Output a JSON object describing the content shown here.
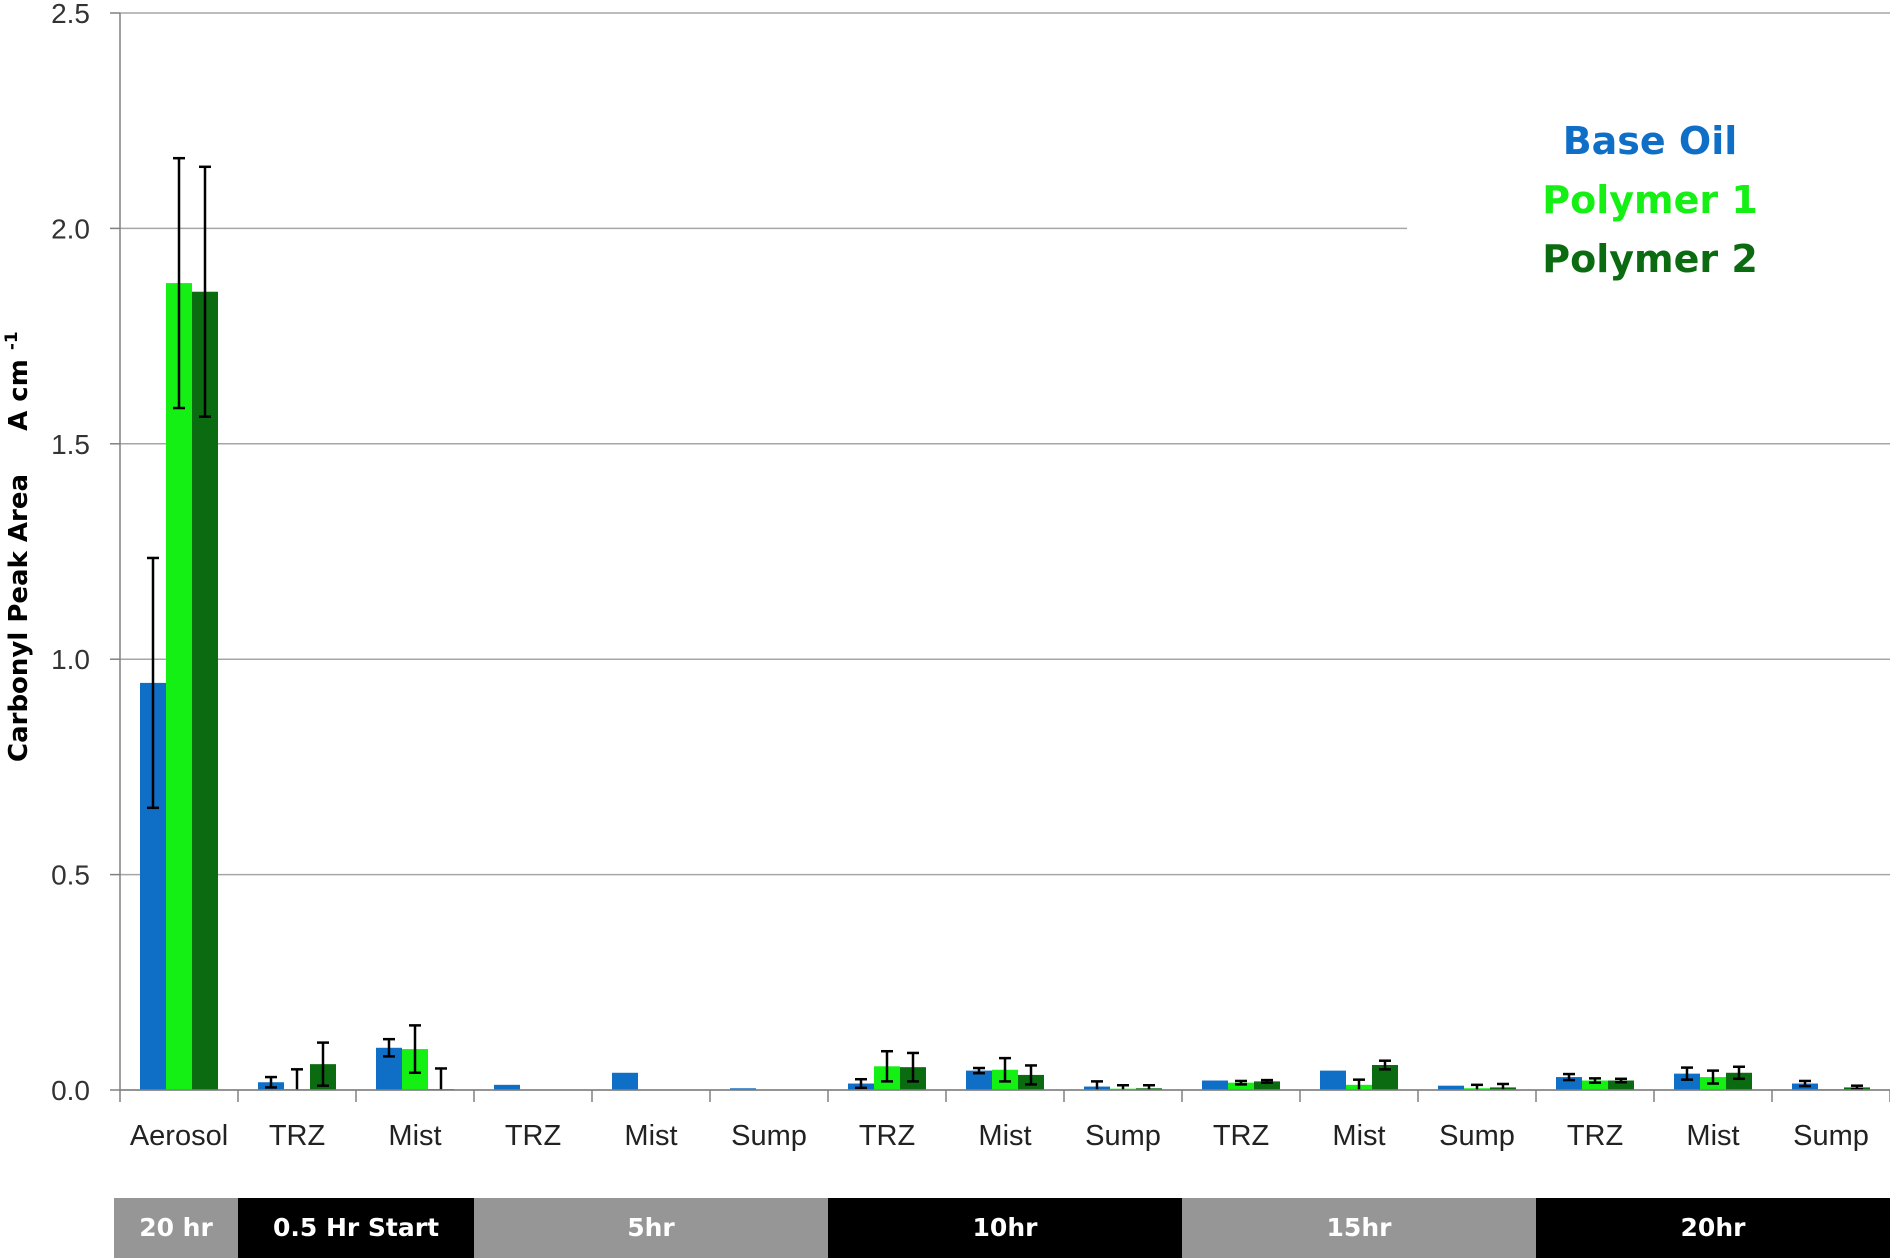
{
  "chart_data": {
    "type": "bar",
    "ylabel": "Carbonyl Peak Area",
    "ylabel_unit": "A cm",
    "ylabel_unit_sup": "-1",
    "ylim": [
      0,
      2.5
    ],
    "yticks": [
      "0.0",
      "0.5",
      "1.0",
      "1.5",
      "2.0",
      "2.5"
    ],
    "grid": true,
    "legend_position": "top-right",
    "categories": [
      "Aerosol",
      "TRZ",
      "Mist",
      "TRZ",
      "Mist",
      "Sump",
      "TRZ",
      "Mist",
      "Sump",
      "TRZ",
      "Mist",
      "Sump",
      "TRZ",
      "Mist",
      "Sump"
    ],
    "groups": [
      {
        "label": "20 hr",
        "span": 1,
        "color": "#969696"
      },
      {
        "label": "0.5 Hr Start",
        "span": 2,
        "color": "#000000"
      },
      {
        "label": "5hr",
        "span": 3,
        "color": "#969696"
      },
      {
        "label": "10hr",
        "span": 3,
        "color": "#000000"
      },
      {
        "label": "15hr",
        "span": 3,
        "color": "#969696"
      },
      {
        "label": "20hr",
        "span": 3,
        "color": "#000000"
      }
    ],
    "series": [
      {
        "name": "Base Oil",
        "color": "#0f6fc6",
        "values": [
          0.945,
          0.018,
          0.098,
          0.012,
          0.04,
          0.004,
          0.015,
          0.045,
          0.008,
          0.022,
          0.045,
          0.01,
          0.03,
          0.038,
          0.015
        ],
        "errors": [
          0.29,
          0.012,
          0.02,
          null,
          null,
          null,
          0.01,
          0.006,
          0.012,
          null,
          null,
          null,
          0.007,
          0.014,
          0.006
        ]
      },
      {
        "name": "Polymer 1",
        "color": "#14f014",
        "values": [
          1.873,
          0.002,
          0.095,
          0.0,
          0.0,
          0.0,
          0.055,
          0.047,
          0.003,
          0.017,
          0.012,
          0.004,
          0.022,
          0.03,
          0.002
        ],
        "errors": [
          0.29,
          0.046,
          0.055,
          null,
          null,
          null,
          0.035,
          0.027,
          0.008,
          0.004,
          0.012,
          0.008,
          0.005,
          0.015,
          null
        ]
      },
      {
        "name": "Polymer 2",
        "color": "#0b6b10",
        "values": [
          1.853,
          0.06,
          0.002,
          0.0,
          0.0,
          0.0,
          0.053,
          0.035,
          0.004,
          0.02,
          0.058,
          0.006,
          0.022,
          0.04,
          0.006
        ],
        "errors": [
          0.29,
          0.05,
          0.048,
          null,
          null,
          null,
          0.033,
          0.022,
          0.007,
          0.003,
          0.01,
          0.008,
          0.004,
          0.014,
          0.004
        ]
      }
    ]
  }
}
